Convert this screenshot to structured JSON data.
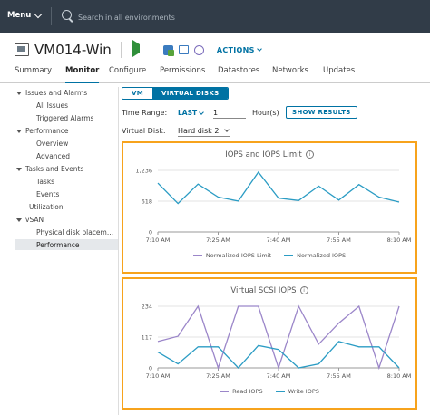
{
  "header": {
    "menu_label": "Menu",
    "search_placeholder": "Search in all environments"
  },
  "vm": {
    "name": "VM014-Win",
    "actions_label": "ACTIONS"
  },
  "tabs": [
    {
      "label": "Summary",
      "active": false
    },
    {
      "label": "Monitor",
      "active": true
    },
    {
      "label": "Configure",
      "active": false
    },
    {
      "label": "Permissions",
      "active": false
    },
    {
      "label": "Datastores",
      "active": false
    },
    {
      "label": "Networks",
      "active": false
    },
    {
      "label": "Updates",
      "active": false
    }
  ],
  "sidebar": {
    "items": [
      {
        "label": "Issues and Alarms",
        "level": 0,
        "expanded": true
      },
      {
        "label": "All Issues",
        "level": 1
      },
      {
        "label": "Triggered Alarms",
        "level": 1
      },
      {
        "label": "Performance",
        "level": 0,
        "expanded": true
      },
      {
        "label": "Overview",
        "level": 1
      },
      {
        "label": "Advanced",
        "level": 1
      },
      {
        "label": "Tasks and Events",
        "level": 0,
        "expanded": true
      },
      {
        "label": "Tasks",
        "level": 1
      },
      {
        "label": "Events",
        "level": 1
      },
      {
        "label": "Utilization",
        "level": 0
      },
      {
        "label": "vSAN",
        "level": 0,
        "expanded": true
      },
      {
        "label": "Physical disk placem...",
        "level": 1
      },
      {
        "label": "Performance",
        "level": 1,
        "selected": true
      }
    ]
  },
  "toggle": {
    "vm_label": "VM",
    "vdisks_label": "VIRTUAL DISKS"
  },
  "filters": {
    "time_range_label": "Time Range:",
    "last_label": "LAST",
    "hours_value": "1",
    "hours_unit": "Hour(s)",
    "show_results_label": "SHOW RESULTS",
    "virtual_disk_label": "Virtual Disk:",
    "virtual_disk_value": "Hard disk 2"
  },
  "chart_data": [
    {
      "type": "line",
      "title": "IOPS and IOPS Limit",
      "x_ticks": [
        "7:10 AM",
        "7:25 AM",
        "7:40 AM",
        "7:55 AM",
        "8:10 AM"
      ],
      "y_ticks": [
        "0",
        "618",
        "1,236"
      ],
      "ylim": [
        0,
        1236
      ],
      "series": [
        {
          "name": "Normalized IOPS Limit",
          "color": "#9b86c9",
          "values": []
        },
        {
          "name": "Normalized IOPS",
          "color": "#2b9cc4",
          "values": [
            980,
            570,
            960,
            700,
            620,
            1200,
            680,
            630,
            920,
            640,
            950,
            700,
            600
          ]
        }
      ]
    },
    {
      "type": "line",
      "title": "Virtual SCSI IOPS",
      "x_ticks": [
        "7:10 AM",
        "7:25 AM",
        "7:40 AM",
        "7:55 AM",
        "8:10 AM"
      ],
      "y_ticks": [
        "0",
        "117",
        "234"
      ],
      "ylim": [
        0,
        234
      ],
      "series": [
        {
          "name": "Read IOPS",
          "color": "#9b86c9",
          "values": [
            100,
            120,
            234,
            0,
            234,
            234,
            0,
            234,
            90,
            170,
            234,
            0,
            234
          ]
        },
        {
          "name": "Write IOPS",
          "color": "#2b9cc4",
          "values": [
            60,
            15,
            80,
            80,
            0,
            85,
            70,
            0,
            15,
            100,
            80,
            80,
            0
          ]
        }
      ]
    }
  ]
}
